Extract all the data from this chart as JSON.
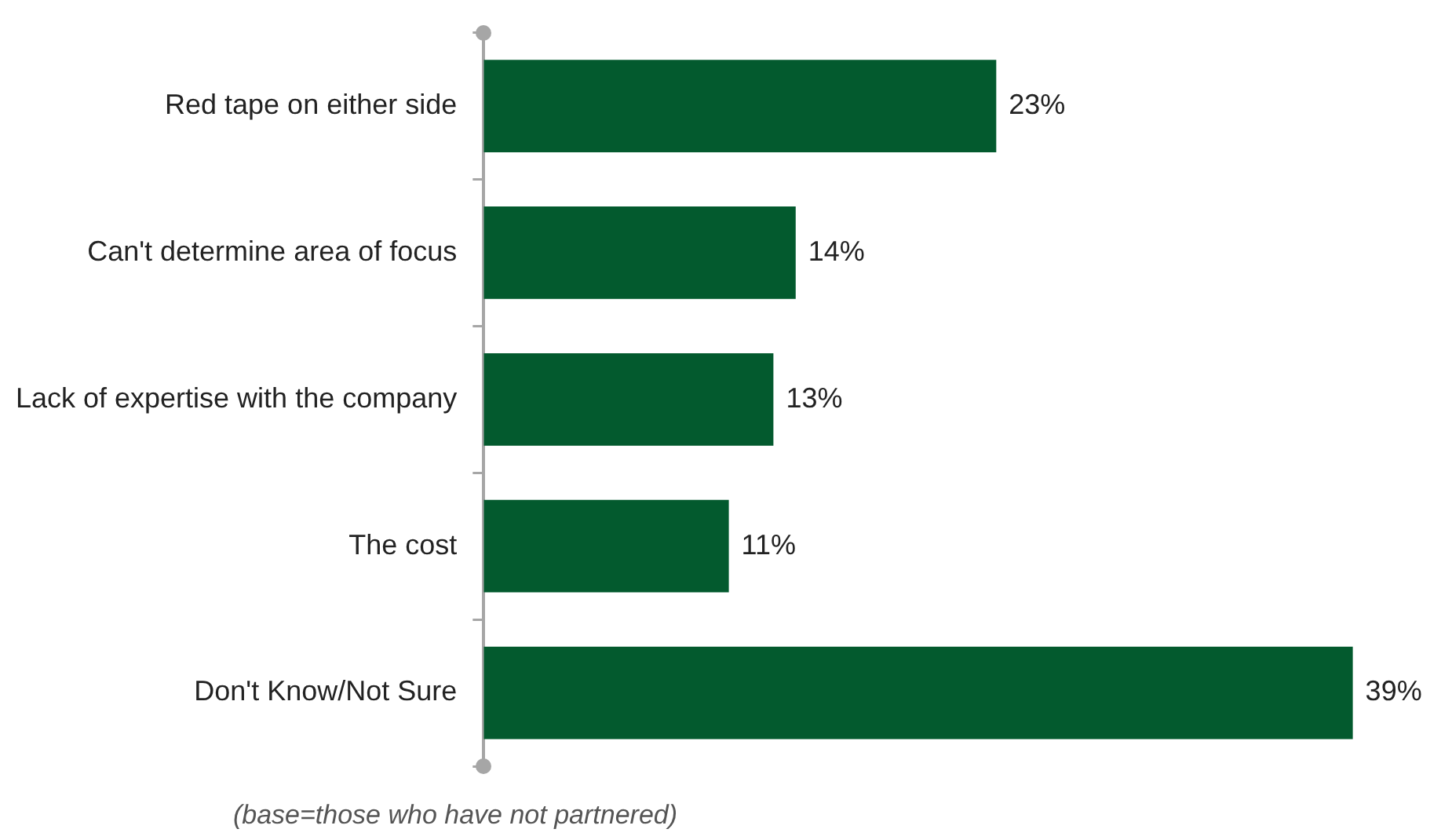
{
  "chart_data": {
    "type": "bar",
    "orientation": "horizontal",
    "categories": [
      "Red tape on either side",
      "Can't determine area of focus",
      "Lack of expertise with the company",
      "The cost",
      "Don't Know/Not Sure"
    ],
    "values": [
      23,
      14,
      13,
      11,
      39
    ],
    "color": "#035a2e",
    "value_labels": [
      "23%",
      "14%",
      "13%",
      "11%",
      "39%"
    ],
    "tick_labels": "y",
    "legend": false,
    "annotations": [
      "(base=those who have not partnered)"
    ]
  }
}
